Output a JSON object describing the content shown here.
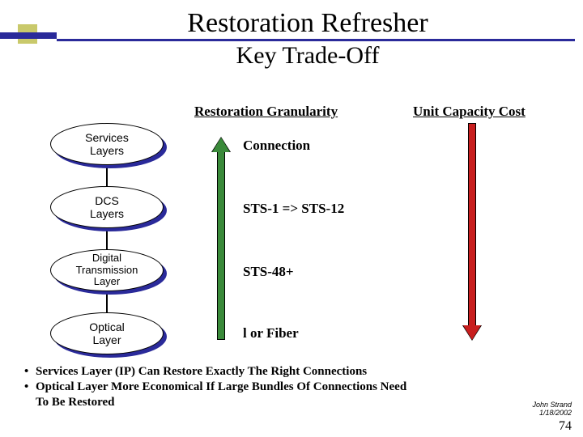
{
  "title": {
    "main": "Restoration Refresher",
    "sub": "Key Trade-Off"
  },
  "headers": {
    "granularity": "Restoration Granularity",
    "cost": "Unit Capacity Cost"
  },
  "layers": {
    "n1": "Services\nLayers",
    "n2": "DCS\nLayers",
    "n3": "Digital\nTransmission\nLayer",
    "n4": "Optical\nLayer"
  },
  "granularity_labels": {
    "g1": "Connection",
    "g2": "STS-1 => STS-12",
    "g3": "STS-48+",
    "g4_prefix": "l",
    "g4_rest": " or Fiber"
  },
  "bullets": {
    "b1": "Services Layer (IP) Can Restore Exactly The Right Connections",
    "b2a": "Optical Layer More Economical If Large Bundles Of Connections Need",
    "b2b": "To Be Restored"
  },
  "footer": {
    "author_line1": "John Strand",
    "author_line2": "1/18/2002",
    "page": "74"
  },
  "colors": {
    "blue": "#2a2a9a",
    "yellow": "#c9c96b",
    "green": "#3a8a3a",
    "red": "#c81e1e"
  }
}
